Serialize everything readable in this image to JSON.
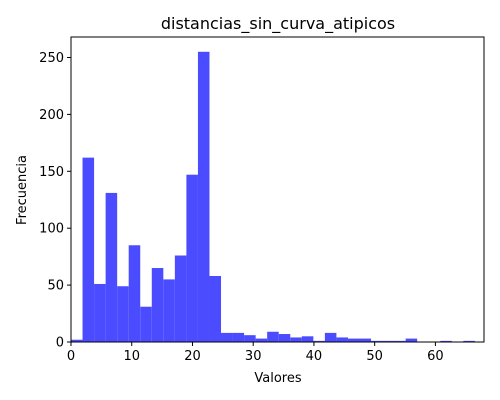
{
  "chart_data": {
    "type": "bar",
    "title": "distancias_sin_curva_atipicos",
    "xlabel": "Valores",
    "ylabel": "Frecuencia",
    "xlim": [
      0,
      68
    ],
    "ylim": [
      0,
      268
    ],
    "grid": false,
    "color": "#4b4bff",
    "bin_width": 1.9,
    "bins": [
      {
        "x0": 0.0,
        "value": 2
      },
      {
        "x0": 1.9,
        "value": 162
      },
      {
        "x0": 3.8,
        "value": 51
      },
      {
        "x0": 5.7,
        "value": 131
      },
      {
        "x0": 7.6,
        "value": 49
      },
      {
        "x0": 9.5,
        "value": 85
      },
      {
        "x0": 11.4,
        "value": 31
      },
      {
        "x0": 13.3,
        "value": 65
      },
      {
        "x0": 15.2,
        "value": 55
      },
      {
        "x0": 17.1,
        "value": 76
      },
      {
        "x0": 19.0,
        "value": 147
      },
      {
        "x0": 20.9,
        "value": 255
      },
      {
        "x0": 22.8,
        "value": 58
      },
      {
        "x0": 24.7,
        "value": 8
      },
      {
        "x0": 26.6,
        "value": 8
      },
      {
        "x0": 28.5,
        "value": 6
      },
      {
        "x0": 30.4,
        "value": 3
      },
      {
        "x0": 32.3,
        "value": 9
      },
      {
        "x0": 34.2,
        "value": 7
      },
      {
        "x0": 36.1,
        "value": 4
      },
      {
        "x0": 38.0,
        "value": 5
      },
      {
        "x0": 39.9,
        "value": 1
      },
      {
        "x0": 41.8,
        "value": 8
      },
      {
        "x0": 43.7,
        "value": 4
      },
      {
        "x0": 45.6,
        "value": 3
      },
      {
        "x0": 47.5,
        "value": 3
      },
      {
        "x0": 49.4,
        "value": 1
      },
      {
        "x0": 51.3,
        "value": 1
      },
      {
        "x0": 53.2,
        "value": 1
      },
      {
        "x0": 55.1,
        "value": 3
      },
      {
        "x0": 57.0,
        "value": 0
      },
      {
        "x0": 58.9,
        "value": 0
      },
      {
        "x0": 60.8,
        "value": 1
      },
      {
        "x0": 62.7,
        "value": 0
      },
      {
        "x0": 64.6,
        "value": 1
      }
    ],
    "x_ticks": [
      0,
      10,
      20,
      30,
      40,
      50,
      60
    ],
    "y_ticks": [
      0,
      50,
      100,
      150,
      200,
      250
    ]
  }
}
